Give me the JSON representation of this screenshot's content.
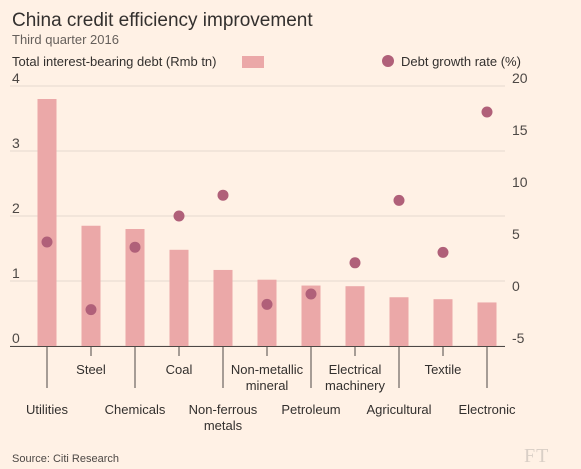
{
  "chart_data": {
    "type": "bar",
    "title": "China credit efficiency improvement",
    "subtitle": "Third quarter 2016",
    "categories": [
      [
        "Utilities"
      ],
      [
        "Steel"
      ],
      [
        "Chemicals"
      ],
      [
        "Coal"
      ],
      [
        "Non-ferrous",
        "metals"
      ],
      [
        "Non-metallic",
        "mineral"
      ],
      [
        "Petroleum"
      ],
      [
        "Electrical",
        "machinery"
      ],
      [
        "Agricultural"
      ],
      [
        "Textile"
      ],
      [
        "Electronic"
      ]
    ],
    "series": [
      {
        "name": "Total interest-bearing debt (Rmb tn)",
        "type": "bar",
        "axis": "left",
        "color": "#eba8a8",
        "values": [
          3.8,
          1.85,
          1.8,
          1.48,
          1.17,
          1.02,
          0.93,
          0.92,
          0.75,
          0.72,
          0.67
        ]
      },
      {
        "name": "Debt growth rate (%)",
        "type": "scatter",
        "axis": "right",
        "color": "#b06079",
        "values": [
          5.0,
          -1.5,
          4.5,
          7.5,
          9.5,
          -1.0,
          0.0,
          3.0,
          9.0,
          4.0,
          17.5
        ]
      }
    ],
    "y_left": {
      "ticks": [
        0,
        1,
        2,
        3,
        4
      ],
      "range": [
        0,
        4
      ]
    },
    "y_right": {
      "ticks": [
        -5,
        0,
        5,
        10,
        15,
        20
      ],
      "range": [
        -5,
        20
      ]
    },
    "grid": true,
    "legend_position": "top"
  },
  "source": "Source: Citi Research",
  "logo": "FT"
}
